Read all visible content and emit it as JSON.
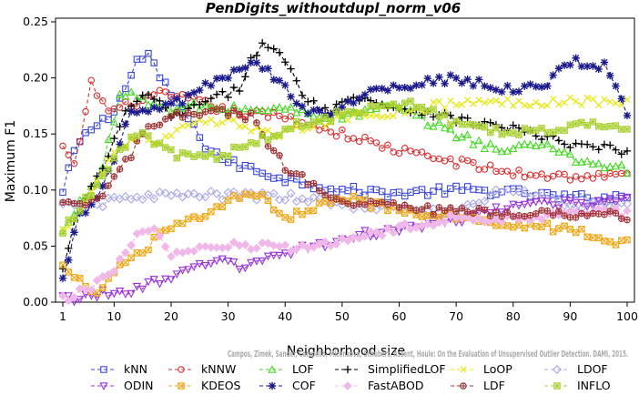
{
  "chart_data": {
    "type": "line",
    "title": "PenDigits_withoutdupl_norm_v06",
    "xlabel": "Neighborhood size",
    "ylabel": "Maximum F1",
    "xlim": [
      1,
      100
    ],
    "ylim": [
      0,
      0.25
    ],
    "xticks": [
      1,
      10,
      20,
      30,
      40,
      50,
      60,
      70,
      80,
      90,
      100
    ],
    "yticks": [
      "0.00",
      "0.05",
      "0.10",
      "0.15",
      "0.20",
      "0.25"
    ],
    "grid": false,
    "legend_placement": "bottom",
    "watermark": "Campos, Zimek, Sander, Campello, Micenkova, Schubert, Assent, Houle: On the Evaluation of Unsupervised Outlier Detection. DAMI, 2015.",
    "series": [
      {
        "name": "kNN",
        "color": "#3a46d8",
        "marker": "square",
        "knots": [
          [
            1,
            0.097
          ],
          [
            3,
            0.135
          ],
          [
            6,
            0.155
          ],
          [
            9,
            0.165
          ],
          [
            12,
            0.19
          ],
          [
            14,
            0.215
          ],
          [
            16,
            0.221
          ],
          [
            18,
            0.2
          ],
          [
            22,
            0.17
          ],
          [
            26,
            0.14
          ],
          [
            30,
            0.125
          ],
          [
            40,
            0.11
          ],
          [
            50,
            0.1
          ],
          [
            60,
            0.097
          ],
          [
            70,
            0.1
          ],
          [
            80,
            0.098
          ],
          [
            90,
            0.093
          ],
          [
            100,
            0.094
          ]
        ]
      },
      {
        "name": "kNNW",
        "color": "#d83030",
        "marker": "circle",
        "knots": [
          [
            1,
            0.138
          ],
          [
            3,
            0.12
          ],
          [
            6,
            0.195
          ],
          [
            9,
            0.17
          ],
          [
            12,
            0.175
          ],
          [
            18,
            0.185
          ],
          [
            24,
            0.18
          ],
          [
            30,
            0.17
          ],
          [
            40,
            0.165
          ],
          [
            50,
            0.15
          ],
          [
            60,
            0.135
          ],
          [
            70,
            0.125
          ],
          [
            80,
            0.115
          ],
          [
            90,
            0.112
          ],
          [
            100,
            0.113
          ]
        ]
      },
      {
        "name": "LOF",
        "color": "#44d822",
        "marker": "triangle-up",
        "knots": [
          [
            1,
            0.062
          ],
          [
            4,
            0.088
          ],
          [
            8,
            0.12
          ],
          [
            11,
            0.185
          ],
          [
            15,
            0.182
          ],
          [
            20,
            0.17
          ],
          [
            24,
            0.175
          ],
          [
            30,
            0.172
          ],
          [
            40,
            0.172
          ],
          [
            50,
            0.165
          ],
          [
            58,
            0.175
          ],
          [
            62,
            0.168
          ],
          [
            70,
            0.15
          ],
          [
            78,
            0.135
          ],
          [
            86,
            0.142
          ],
          [
            92,
            0.125
          ],
          [
            97,
            0.122
          ],
          [
            100,
            0.118
          ]
        ]
      },
      {
        "name": "SimplifiedLOF",
        "color": "#000000",
        "marker": "plus",
        "knots": [
          [
            1,
            0.028
          ],
          [
            3,
            0.07
          ],
          [
            8,
            0.12
          ],
          [
            12,
            0.168
          ],
          [
            16,
            0.187
          ],
          [
            20,
            0.165
          ],
          [
            28,
            0.182
          ],
          [
            32,
            0.19
          ],
          [
            34,
            0.22
          ],
          [
            36,
            0.228
          ],
          [
            38,
            0.227
          ],
          [
            41,
            0.205
          ],
          [
            44,
            0.18
          ],
          [
            48,
            0.17
          ],
          [
            52,
            0.185
          ],
          [
            58,
            0.175
          ],
          [
            65,
            0.17
          ],
          [
            70,
            0.163
          ],
          [
            80,
            0.155
          ],
          [
            90,
            0.14
          ],
          [
            100,
            0.135
          ]
        ]
      },
      {
        "name": "LoOP",
        "color": "#e8e820",
        "marker": "x",
        "knots": [
          [
            1,
            0.063
          ],
          [
            5,
            0.09
          ],
          [
            10,
            0.135
          ],
          [
            14,
            0.148
          ],
          [
            18,
            0.142
          ],
          [
            22,
            0.155
          ],
          [
            26,
            0.16
          ],
          [
            30,
            0.16
          ],
          [
            40,
            0.15
          ],
          [
            50,
            0.165
          ],
          [
            60,
            0.17
          ],
          [
            70,
            0.178
          ],
          [
            80,
            0.178
          ],
          [
            90,
            0.18
          ],
          [
            100,
            0.178
          ]
        ]
      },
      {
        "name": "LDOF",
        "color": "#a8a8e8",
        "marker": "diamond",
        "knots": [
          [
            1,
            0.085
          ],
          [
            8,
            0.088
          ],
          [
            14,
            0.095
          ],
          [
            20,
            0.095
          ],
          [
            30,
            0.095
          ],
          [
            40,
            0.094
          ],
          [
            45,
            0.09
          ],
          [
            50,
            0.088
          ],
          [
            60,
            0.083
          ],
          [
            70,
            0.08
          ],
          [
            78,
            0.1
          ],
          [
            85,
            0.095
          ],
          [
            92,
            0.085
          ],
          [
            100,
            0.09
          ]
        ]
      },
      {
        "name": "ODIN",
        "color": "#9a30d8",
        "marker": "triangle-down",
        "knots": [
          [
            1,
            0.003
          ],
          [
            10,
            0.008
          ],
          [
            20,
            0.02
          ],
          [
            28,
            0.04
          ],
          [
            32,
            0.03
          ],
          [
            40,
            0.045
          ],
          [
            50,
            0.055
          ],
          [
            58,
            0.065
          ],
          [
            68,
            0.07
          ],
          [
            76,
            0.08
          ],
          [
            84,
            0.09
          ],
          [
            90,
            0.087
          ],
          [
            100,
            0.093
          ]
        ]
      },
      {
        "name": "KDEOS",
        "color": "#f0a818",
        "marker": "square-x",
        "knots": [
          [
            1,
            0.03
          ],
          [
            5,
            0.015
          ],
          [
            8,
            0.01
          ],
          [
            10,
            0.03
          ],
          [
            14,
            0.04
          ],
          [
            18,
            0.06
          ],
          [
            24,
            0.075
          ],
          [
            30,
            0.09
          ],
          [
            35,
            0.097
          ],
          [
            40,
            0.075
          ],
          [
            45,
            0.085
          ],
          [
            50,
            0.095
          ],
          [
            60,
            0.08
          ],
          [
            70,
            0.075
          ],
          [
            80,
            0.07
          ],
          [
            90,
            0.065
          ],
          [
            100,
            0.052
          ]
        ]
      },
      {
        "name": "COF",
        "color": "#1a1a8c",
        "marker": "star",
        "knots": [
          [
            1,
            0.018
          ],
          [
            4,
            0.08
          ],
          [
            7,
            0.09
          ],
          [
            10,
            0.125
          ],
          [
            13,
            0.17
          ],
          [
            17,
            0.172
          ],
          [
            22,
            0.18
          ],
          [
            26,
            0.192
          ],
          [
            30,
            0.2
          ],
          [
            34,
            0.215
          ],
          [
            38,
            0.202
          ],
          [
            44,
            0.17
          ],
          [
            48,
            0.17
          ],
          [
            52,
            0.18
          ],
          [
            58,
            0.192
          ],
          [
            64,
            0.195
          ],
          [
            70,
            0.2
          ],
          [
            80,
            0.188
          ],
          [
            86,
            0.195
          ],
          [
            90,
            0.215
          ],
          [
            96,
            0.21
          ],
          [
            100,
            0.168
          ]
        ]
      },
      {
        "name": "FastABOD",
        "color": "#f0b8e8",
        "marker": "diamond-filled",
        "knots": [
          [
            1,
            0.002
          ],
          [
            5,
            0.01
          ],
          [
            10,
            0.03
          ],
          [
            14,
            0.06
          ],
          [
            17,
            0.065
          ],
          [
            20,
            0.04
          ],
          [
            28,
            0.05
          ],
          [
            35,
            0.05
          ],
          [
            40,
            0.047
          ],
          [
            50,
            0.055
          ],
          [
            60,
            0.065
          ],
          [
            70,
            0.075
          ],
          [
            80,
            0.075
          ],
          [
            90,
            0.08
          ],
          [
            100,
            0.08
          ]
        ]
      },
      {
        "name": "LDF",
        "color": "#a03030",
        "marker": "circle-plus",
        "knots": [
          [
            1,
            0.085
          ],
          [
            5,
            0.088
          ],
          [
            8,
            0.095
          ],
          [
            12,
            0.125
          ],
          [
            16,
            0.155
          ],
          [
            20,
            0.165
          ],
          [
            28,
            0.17
          ],
          [
            34,
            0.165
          ],
          [
            40,
            0.12
          ],
          [
            46,
            0.1
          ],
          [
            52,
            0.09
          ],
          [
            60,
            0.085
          ],
          [
            70,
            0.08
          ],
          [
            80,
            0.08
          ],
          [
            90,
            0.078
          ],
          [
            100,
            0.077
          ]
        ]
      },
      {
        "name": "INFLO",
        "color": "#a8d030",
        "marker": "square-star",
        "knots": [
          [
            1,
            0.065
          ],
          [
            5,
            0.09
          ],
          [
            10,
            0.13
          ],
          [
            14,
            0.15
          ],
          [
            18,
            0.14
          ],
          [
            22,
            0.13
          ],
          [
            28,
            0.13
          ],
          [
            34,
            0.14
          ],
          [
            40,
            0.155
          ],
          [
            48,
            0.165
          ],
          [
            56,
            0.175
          ],
          [
            62,
            0.178
          ],
          [
            70,
            0.16
          ],
          [
            80,
            0.152
          ],
          [
            88,
            0.155
          ],
          [
            94,
            0.158
          ],
          [
            100,
            0.155
          ]
        ]
      }
    ]
  }
}
